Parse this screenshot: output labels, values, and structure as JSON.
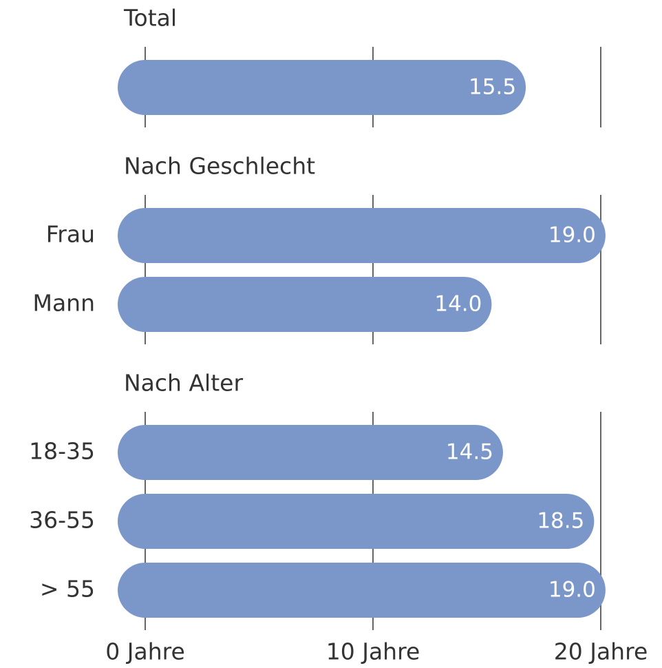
{
  "chart_data": {
    "type": "bar",
    "color": "#7b97c9",
    "groups": [
      {
        "title": "Total",
        "categories": [
          null
        ],
        "values": [
          15.5
        ],
        "value_labels": [
          "15.5"
        ]
      },
      {
        "title": "Nach Geschlecht",
        "categories": [
          "Frau",
          "Mann"
        ],
        "values": [
          19.0,
          14.0
        ],
        "value_labels": [
          "19.0",
          "14.0"
        ]
      },
      {
        "title": "Nach Alter",
        "categories": [
          "18-35",
          "36-55",
          "> 55"
        ],
        "values": [
          14.5,
          18.5,
          19.0
        ],
        "value_labels": [
          "14.5",
          "18.5",
          "19.0"
        ]
      }
    ],
    "xlim": [
      0,
      20
    ],
    "xticks": [
      {
        "value": 0,
        "label": "0 Jahre"
      },
      {
        "value": 10,
        "label": "10 Jahre"
      },
      {
        "value": 20,
        "label": "20 Jahre"
      }
    ],
    "grid": true
  }
}
